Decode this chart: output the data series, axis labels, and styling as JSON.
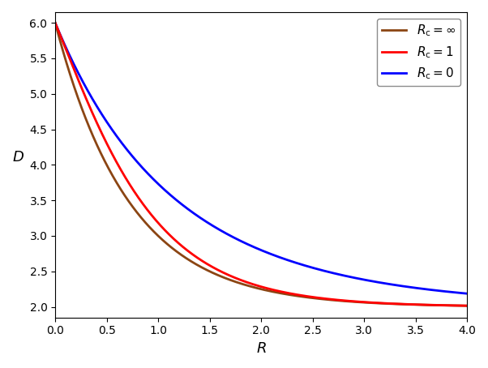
{
  "title": "",
  "xlabel": "$R$",
  "ylabel": "$D$",
  "xlim": [
    0,
    4.0
  ],
  "ylim": [
    1.85,
    6.15
  ],
  "sigma2": 6.0,
  "N": 2.0,
  "Rc_inf_color": "#8B4513",
  "Rc_1_color": "#FF0000",
  "Rc_0_color": "#0000FF",
  "Rc_inf_label": "$R_\\mathrm{c} = \\infty$",
  "Rc_1_label": "$R_\\mathrm{c} = 1$",
  "Rc_0_label": "$R_\\mathrm{c} = 0$",
  "linewidth": 2.0,
  "xticks": [
    0.0,
    0.5,
    1.0,
    1.5,
    2.0,
    2.5,
    3.0,
    3.5,
    4.0
  ],
  "yticks": [
    2.0,
    2.5,
    3.0,
    3.5,
    4.0,
    4.5,
    5.0,
    5.5,
    6.0
  ],
  "legend_loc": "upper right",
  "legend_fontsize": 11,
  "xlabel_fontsize": 13,
  "ylabel_fontsize": 13,
  "figsize": [
    6.02,
    4.54
  ],
  "dpi": 100
}
